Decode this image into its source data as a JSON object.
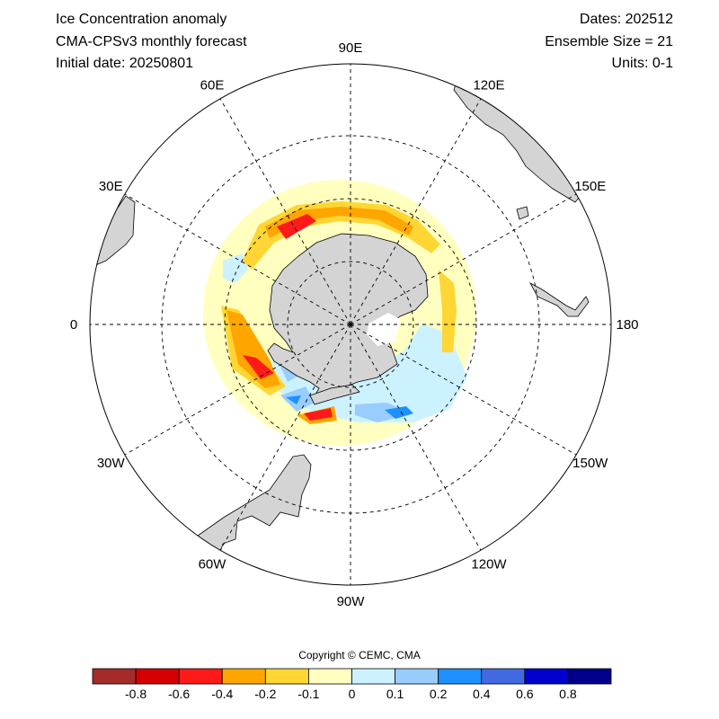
{
  "header": {
    "title": "Ice Concentration anomaly",
    "model": "CMA-CPSv3 monthly forecast",
    "initial": "Initial date: 20250801",
    "dates": "Dates: 202512",
    "ensemble": "Ensemble Size = 21",
    "units": "Units: 0-1"
  },
  "map": {
    "projection": "south-polar-stereographic",
    "longitude_labels": [
      {
        "lon": 0,
        "text": "0"
      },
      {
        "lon": 30,
        "text": "30E"
      },
      {
        "lon": 60,
        "text": "60E"
      },
      {
        "lon": 90,
        "text": "90E"
      },
      {
        "lon": 120,
        "text": "120E"
      },
      {
        "lon": 150,
        "text": "150E"
      },
      {
        "lon": 180,
        "text": "180"
      },
      {
        "lon": -150,
        "text": "150W"
      },
      {
        "lon": -120,
        "text": "120W"
      },
      {
        "lon": -90,
        "text": "90W"
      },
      {
        "lon": -60,
        "text": "60W"
      },
      {
        "lon": -30,
        "text": "30W"
      }
    ],
    "land_color": "#d4d4d4",
    "grid": "dashed"
  },
  "copyright": "Copyright © CEMC, CMA",
  "colorbar": {
    "colors": [
      "#a52a2a",
      "#d50000",
      "#ff1a1a",
      "#ffa500",
      "#ffd633",
      "#ffffc0",
      "#ccf2ff",
      "#99ccff",
      "#1e90ff",
      "#4169e1",
      "#0000cd",
      "#00008b"
    ],
    "labels": [
      "-0.8",
      "-0.6",
      "-0.4",
      "-0.2",
      "-0.1",
      "0",
      "0.1",
      "0.2",
      "0.4",
      "0.6",
      "0.8"
    ]
  }
}
